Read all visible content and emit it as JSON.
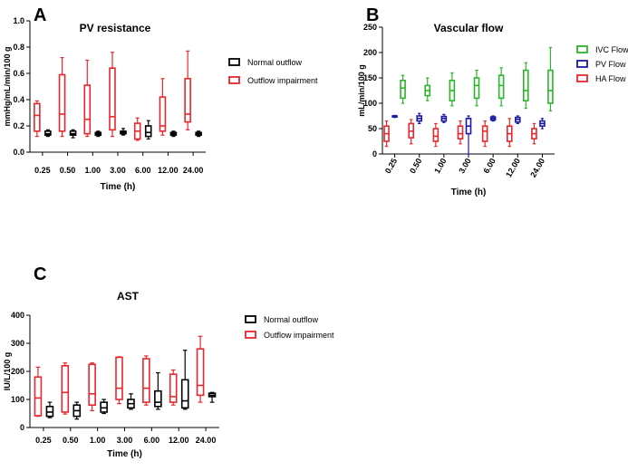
{
  "panels": [
    {
      "letter": "A",
      "chart_data": {
        "type": "box",
        "title": "PV resistance",
        "xlabel": "Time (h)",
        "ylabel": "mmHg/mL/min/100 g",
        "ylim": [
          0,
          1.0
        ],
        "yticks": [
          "0.0",
          "0.2",
          "0.4",
          "0.6",
          "0.8",
          "1.0"
        ],
        "categories": [
          "0.25",
          "0.50",
          "1.00",
          "3.00",
          "6.00",
          "12.00",
          "24.00"
        ],
        "legend_position": "right",
        "series": [
          {
            "name": "Outflow impairment",
            "color": "#e8262b",
            "boxes": [
              [
                0.12,
                0.16,
                0.28,
                0.37,
                0.39
              ],
              [
                0.12,
                0.16,
                0.29,
                0.59,
                0.72
              ],
              [
                0.12,
                0.14,
                0.25,
                0.51,
                0.7
              ],
              [
                0.12,
                0.17,
                0.27,
                0.64,
                0.76
              ],
              [
                0.09,
                0.1,
                0.16,
                0.22,
                0.26
              ],
              [
                0.13,
                0.16,
                0.2,
                0.42,
                0.56
              ],
              [
                0.17,
                0.23,
                0.29,
                0.56,
                0.77
              ]
            ]
          },
          {
            "name": "Normal outflow",
            "color": "#000000",
            "boxes": [
              [
                0.12,
                0.13,
                0.14,
                0.16,
                0.17
              ],
              [
                0.11,
                0.13,
                0.14,
                0.16,
                0.17
              ],
              [
                0.12,
                0.13,
                0.14,
                0.15,
                0.16
              ],
              [
                0.13,
                0.14,
                0.15,
                0.16,
                0.18
              ],
              [
                0.1,
                0.12,
                0.15,
                0.2,
                0.24
              ],
              [
                0.12,
                0.13,
                0.14,
                0.15,
                0.16
              ],
              [
                0.12,
                0.13,
                0.14,
                0.15,
                0.16
              ]
            ]
          }
        ]
      }
    },
    {
      "letter": "B",
      "chart_data": {
        "type": "box",
        "title": "Vascular flow",
        "xlabel": "Time (h)",
        "ylabel": "mL/min/100 g",
        "ylim": [
          0,
          250
        ],
        "yticks": [
          "0",
          "50",
          "100",
          "150",
          "200",
          "250"
        ],
        "categories": [
          "0.25",
          "0.50",
          "1.00",
          "3.00",
          "6.00",
          "12.00",
          "24.00"
        ],
        "legend_position": "right",
        "series": [
          {
            "name": "HA Flow",
            "color": "#e8262b",
            "boxes": [
              [
                15,
                25,
                40,
                55,
                65
              ],
              [
                20,
                32,
                45,
                60,
                68
              ],
              [
                15,
                25,
                35,
                50,
                60
              ],
              [
                20,
                30,
                40,
                55,
                65
              ],
              [
                15,
                25,
                45,
                55,
                65
              ],
              [
                15,
                25,
                40,
                55,
                70
              ],
              [
                20,
                30,
                40,
                50,
                60
              ]
            ]
          },
          {
            "name": "PV Flow",
            "color": "#1a1aa6",
            "boxes": [
              [
                72,
                73,
                74,
                75,
                76
              ],
              [
                60,
                65,
                70,
                75,
                80
              ],
              [
                62,
                65,
                70,
                74,
                78
              ],
              [
                0,
                40,
                55,
                70,
                75
              ],
              [
                65,
                67,
                70,
                73,
                75
              ],
              [
                60,
                63,
                68,
                72,
                75
              ],
              [
                50,
                55,
                60,
                65,
                70
              ]
            ]
          },
          {
            "name": "IVC Flow",
            "color": "#2bb52b",
            "boxes": [
              [
                100,
                110,
                130,
                145,
                155
              ],
              [
                105,
                115,
                125,
                135,
                150
              ],
              [
                95,
                105,
                125,
                145,
                160
              ],
              [
                95,
                110,
                135,
                150,
                165
              ],
              [
                95,
                110,
                135,
                155,
                170
              ],
              [
                90,
                105,
                125,
                165,
                180
              ],
              [
                85,
                100,
                125,
                165,
                210
              ]
            ]
          }
        ]
      }
    },
    {
      "letter": "C",
      "chart_data": {
        "type": "box",
        "title": "AST",
        "xlabel": "Time (h)",
        "ylabel": "IU/L/100 g",
        "ylim": [
          0,
          400
        ],
        "yticks": [
          "0",
          "100",
          "200",
          "300",
          "400"
        ],
        "categories": [
          "0.25",
          "0.50",
          "1.00",
          "3.00",
          "6.00",
          "12.00",
          "24.00"
        ],
        "legend_position": "right",
        "series": [
          {
            "name": "Outflow impairment",
            "color": "#e8262b",
            "boxes": [
              [
                40,
                42,
                105,
                180,
                215
              ],
              [
                48,
                55,
                125,
                220,
                230
              ],
              [
                60,
                80,
                120,
                225,
                230
              ],
              [
                85,
                100,
                140,
                250,
                252
              ],
              [
                80,
                90,
                140,
                245,
                255
              ],
              [
                80,
                90,
                110,
                190,
                205
              ],
              [
                90,
                115,
                150,
                280,
                325
              ]
            ]
          },
          {
            "name": "Normal outflow",
            "color": "#000000",
            "boxes": [
              [
                35,
                40,
                55,
                75,
                90
              ],
              [
                30,
                40,
                60,
                80,
                90
              ],
              [
                50,
                55,
                70,
                90,
                100
              ],
              [
                65,
                70,
                85,
                100,
                120
              ],
              [
                65,
                75,
                90,
                130,
                195
              ],
              [
                65,
                70,
                95,
                170,
                275
              ],
              [
                90,
                110,
                115,
                122,
                125
              ]
            ]
          }
        ]
      }
    }
  ]
}
